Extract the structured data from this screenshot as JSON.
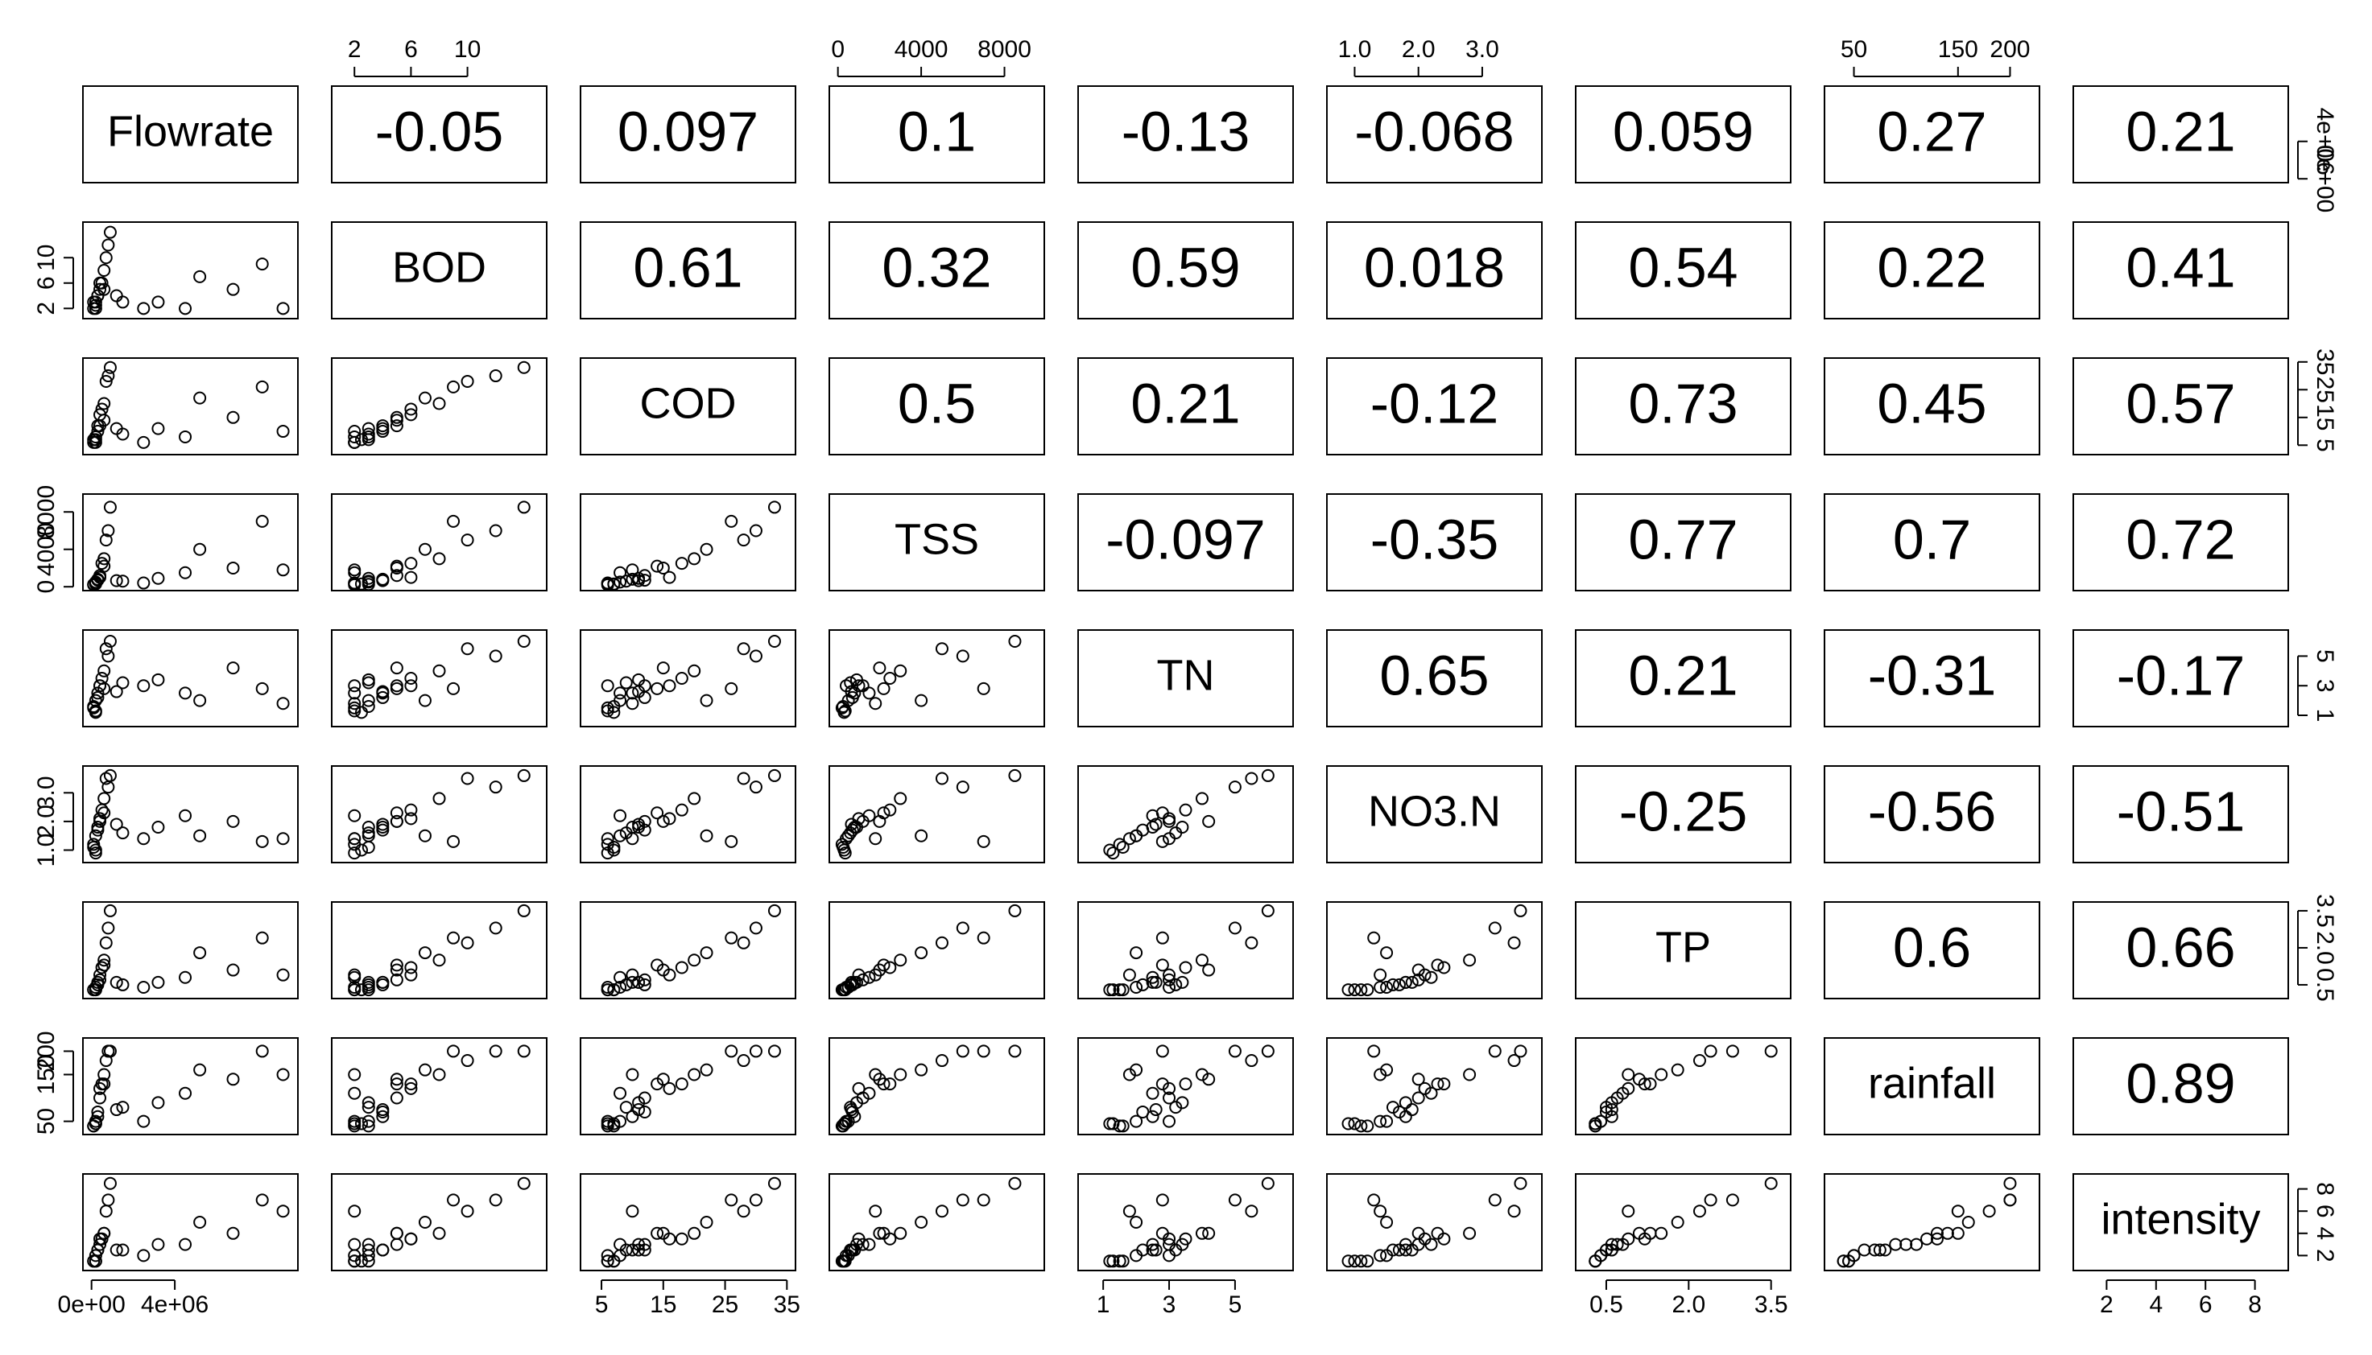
{
  "chart_data": {
    "type": "pairs",
    "color": "#000000",
    "series": [
      {
        "name": "Flowrate",
        "lim": [
          0,
          9500000
        ],
        "ticks": [
          {
            "value": 0,
            "label": "0e+00"
          },
          {
            "value": 4000000,
            "label": "4e+06"
          }
        ],
        "values": [
          200000,
          400000,
          100000,
          600000,
          300000,
          800000,
          500000,
          200000,
          1500000,
          2500000,
          3200000,
          4500000,
          5200000,
          6800000,
          8200000,
          9200000,
          300000,
          700000,
          100000,
          400000,
          900000,
          200000,
          600000,
          1200000
        ]
      },
      {
        "name": "BOD",
        "lim": [
          1,
          15
        ],
        "ticks": [
          2,
          6,
          10
        ],
        "values": [
          3,
          5,
          2,
          8,
          4,
          12,
          6,
          2.5,
          3,
          2,
          3,
          2,
          7,
          5,
          9,
          2,
          4,
          10,
          3,
          6,
          14,
          2,
          5,
          4
        ]
      },
      {
        "name": "COD",
        "lim": [
          3,
          35
        ],
        "ticks": [
          5,
          15,
          25,
          35
        ],
        "values": [
          8,
          12,
          6,
          20,
          10,
          30,
          18,
          7,
          9,
          6,
          11,
          8,
          22,
          15,
          26,
          10,
          12,
          28,
          7,
          16,
          33,
          6,
          14,
          11
        ]
      },
      {
        "name": "TSS",
        "lim": [
          0,
          9500
        ],
        "ticks": [
          0,
          4000,
          8000
        ],
        "values": [
          500,
          1200,
          200,
          3000,
          800,
          6000,
          2500,
          300,
          600,
          400,
          900,
          1500,
          4000,
          2000,
          7000,
          1800,
          700,
          5000,
          250,
          1000,
          8500,
          350,
          2200,
          650
        ]
      },
      {
        "name": "TN",
        "lim": [
          0.5,
          6.5
        ],
        "ticks": [
          1,
          3,
          5
        ],
        "values": [
          2,
          3,
          1.5,
          4,
          2.5,
          5,
          3.5,
          1.2,
          3.2,
          3,
          3.4,
          2.5,
          2,
          4.2,
          2.8,
          1.8,
          2.2,
          5.5,
          1.6,
          3,
          6,
          1.3,
          2.8,
          2.6
        ]
      },
      {
        "name": "NO3.N",
        "lim": [
          0.7,
          3.8
        ],
        "ticks": [
          {
            "value": 1,
            "label": "1.0"
          },
          {
            "value": 2,
            "label": "2.0"
          },
          {
            "value": 3,
            "label": "3.0"
          }
        ],
        "values": [
          1.5,
          2,
          1.2,
          2.8,
          1.8,
          3.2,
          2.4,
          1.0,
          1.6,
          1.4,
          1.8,
          2.2,
          1.5,
          2,
          1.3,
          1.4,
          1.7,
          3.5,
          1.1,
          2.1,
          3.6,
          0.9,
          2.3,
          1.9
        ]
      },
      {
        "name": "TP",
        "lim": [
          0.1,
          3.7
        ],
        "ticks": [
          0.5,
          {
            "value": 2,
            "label": "2.0"
          },
          3.5
        ],
        "values": [
          0.4,
          0.7,
          0.3,
          1.5,
          0.6,
          2.8,
          1.2,
          0.3,
          0.5,
          0.4,
          0.6,
          0.8,
          1.8,
          1.1,
          2.4,
          0.9,
          0.5,
          2.2,
          0.3,
          0.9,
          3.5,
          0.3,
          1.3,
          0.6
        ]
      },
      {
        "name": "rainfall",
        "lim": [
          30,
          220
        ],
        "ticks": [
          50,
          150,
          200
        ],
        "values": [
          50,
          100,
          40,
          150,
          60,
          200,
          130,
          45,
          80,
          50,
          90,
          110,
          160,
          140,
          200,
          150,
          70,
          180,
          40,
          120,
          200,
          45,
          130,
          75
        ]
      },
      {
        "name": "intensity",
        "lim": [
          1,
          9
        ],
        "ticks": [
          2,
          4,
          6,
          8
        ],
        "values": [
          2,
          3,
          1.5,
          4,
          2.5,
          7,
          3.5,
          1.5,
          2.5,
          2,
          3,
          3,
          5,
          4,
          7,
          6,
          2.5,
          6,
          1.5,
          3.5,
          8.5,
          1.5,
          4,
          2.5
        ]
      }
    ],
    "correlations": [
      [
        -0.05,
        0.097,
        0.1,
        -0.13,
        -0.068,
        0.059,
        0.27,
        0.21
      ],
      [
        0.61,
        0.32,
        0.59,
        0.018,
        0.54,
        0.22,
        0.41
      ],
      [
        0.5,
        0.21,
        -0.12,
        0.73,
        0.45,
        0.57
      ],
      [
        -0.097,
        -0.35,
        0.77,
        0.7,
        0.72
      ],
      [
        0.65,
        0.21,
        -0.31,
        -0.17
      ],
      [
        -0.25,
        -0.56,
        -0.51
      ],
      [
        0.6,
        0.66
      ],
      [
        0.89
      ]
    ]
  }
}
